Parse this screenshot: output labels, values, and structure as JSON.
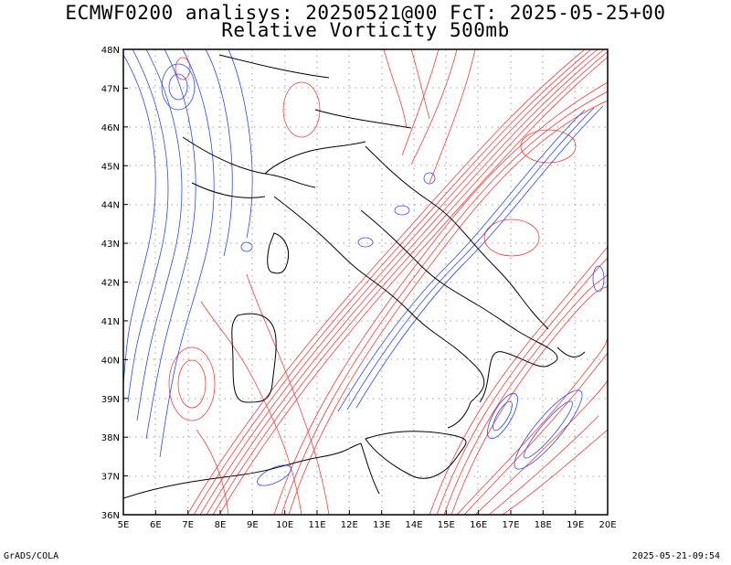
{
  "title": {
    "line1": "ECMWF0200 analisys: 20250521@00 FcT: 2025-05-25+00",
    "line2": "Relative Vorticity 500mb"
  },
  "footer": {
    "left": "GrADS/COLA",
    "right": "2025-05-21-09:54"
  },
  "map": {
    "lon_labels": [
      "5E",
      "6E",
      "7E",
      "8E",
      "9E",
      "10E",
      "11E",
      "12E",
      "13E",
      "14E",
      "15E",
      "16E",
      "17E",
      "18E",
      "19E",
      "20E"
    ],
    "lat_labels": [
      "36N",
      "37N",
      "38N",
      "39N",
      "40N",
      "41N",
      "42N",
      "43N",
      "44N",
      "45N",
      "46N",
      "47N",
      "48N"
    ],
    "lon_range": [
      5,
      20
    ],
    "lat_range": [
      36,
      48
    ],
    "grid": "dotted",
    "colors": {
      "positive": "#ff3c3c",
      "negative": "#2846ff",
      "coast": "#000000"
    }
  }
}
